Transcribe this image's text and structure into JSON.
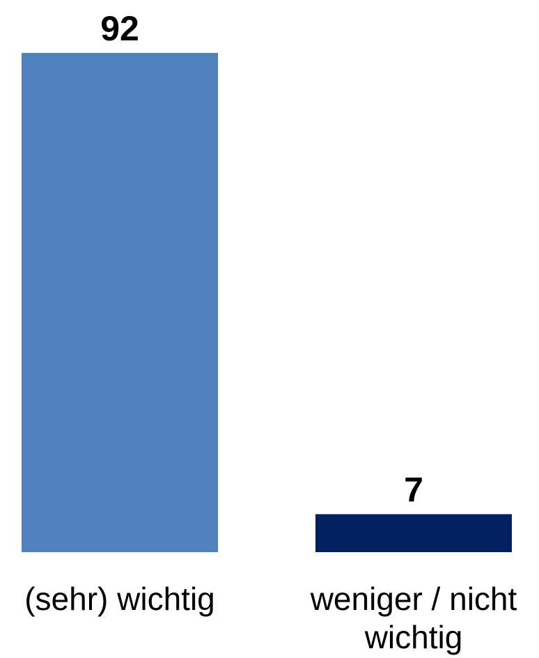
{
  "chart_data": {
    "type": "bar",
    "categories": [
      "(sehr) wichtig",
      "weniger / nicht wichtig"
    ],
    "category_lines": [
      [
        "(sehr) wichtig"
      ],
      [
        "weniger / nicht",
        "wichtig"
      ]
    ],
    "values": [
      92,
      7
    ],
    "value_labels": [
      "92",
      "7"
    ],
    "colors": [
      "#4f81bd",
      "#002060"
    ],
    "title": "",
    "xlabel": "",
    "ylabel": "",
    "ylim": [
      0,
      92
    ],
    "grid": false,
    "legend": "none"
  }
}
